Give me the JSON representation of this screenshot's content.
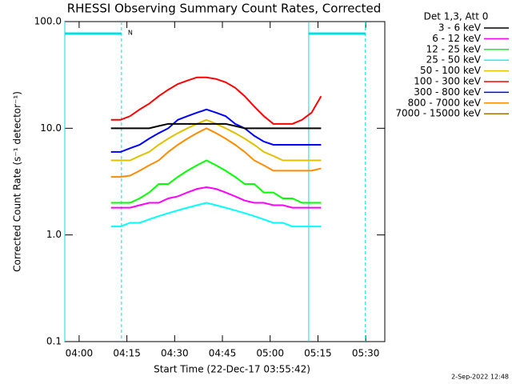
{
  "chart_data": {
    "type": "line",
    "title": "RHESSI Observing Summary Count Rates, Corrected",
    "x_label": "Start Time (22-Dec-17 03:55:42)",
    "y_label": "Corrected Count Rate (s⁻¹ detector⁻¹)",
    "legend_title": "Det 1,3, Att 0",
    "footer": "2-Sep-2022 12:48",
    "log_y": true,
    "legend_position": "outside-right",
    "xlim": [
      235.5,
      336
    ],
    "xticks": [
      {
        "value": 240,
        "label": "04:00"
      },
      {
        "value": 255,
        "label": "04:15"
      },
      {
        "value": 270,
        "label": "04:30"
      },
      {
        "value": 285,
        "label": "04:45"
      },
      {
        "value": 300,
        "label": "05:00"
      },
      {
        "value": 315,
        "label": "05:15"
      },
      {
        "value": 330,
        "label": "05:30"
      }
    ],
    "ylim": [
      0.1,
      100
    ],
    "yticks": [
      {
        "value": 0.1,
        "label": "0.1"
      },
      {
        "value": 1,
        "label": "1.0"
      },
      {
        "value": 10,
        "label": "10.0"
      },
      {
        "value": 100,
        "label": "100.0"
      }
    ],
    "night_periods": [
      [
        235.5,
        253.3
      ],
      [
        312.1,
        329.9
      ]
    ],
    "night_label": "N",
    "x": [
      250,
      253,
      256,
      259,
      262,
      265,
      268,
      271,
      274,
      277,
      280,
      283,
      286,
      289,
      292,
      295,
      298,
      301,
      304,
      307,
      310,
      313,
      316
    ],
    "series": [
      {
        "name": "3 - 6 keV",
        "color": "#000000",
        "values": [
          10,
          10,
          10,
          10,
          10,
          10.5,
          11,
          11,
          11,
          11,
          11,
          11,
          11,
          10.5,
          10,
          10,
          10,
          10,
          10,
          10,
          10,
          10,
          10
        ]
      },
      {
        "name": "6 - 12 keV",
        "color": "#ff00ff",
        "values": [
          1.8,
          1.8,
          1.8,
          1.9,
          2,
          2,
          2.2,
          2.3,
          2.5,
          2.7,
          2.8,
          2.7,
          2.5,
          2.3,
          2.1,
          2,
          2,
          1.9,
          1.9,
          1.8,
          1.8,
          1.8,
          1.8
        ]
      },
      {
        "name": "12 - 25 keV",
        "color": "#00ff00",
        "values": [
          2,
          2,
          2,
          2.2,
          2.5,
          3,
          3,
          3.5,
          4,
          4.5,
          5,
          4.5,
          4,
          3.5,
          3,
          3,
          2.5,
          2.5,
          2.2,
          2.2,
          2,
          2,
          2
        ]
      },
      {
        "name": "25 - 50 keV",
        "color": "#00ffff",
        "values": [
          1.2,
          1.2,
          1.3,
          1.3,
          1.4,
          1.5,
          1.6,
          1.7,
          1.8,
          1.9,
          2,
          1.9,
          1.8,
          1.7,
          1.6,
          1.5,
          1.4,
          1.3,
          1.3,
          1.2,
          1.2,
          1.2,
          1.2
        ]
      },
      {
        "name": "50 - 100 keV",
        "color": "#e0c000",
        "values": [
          5,
          5,
          5,
          5.5,
          6,
          7,
          8,
          9,
          10,
          11,
          12,
          11,
          10,
          9,
          8,
          7,
          6,
          5.5,
          5,
          5,
          5,
          5,
          5
        ]
      },
      {
        "name": "100 - 300 keV",
        "color": "#ff0000",
        "values": [
          12,
          12,
          13,
          15,
          17,
          20,
          23,
          26,
          28,
          30,
          30,
          29,
          27,
          24,
          20,
          16,
          13,
          11,
          11,
          11,
          12,
          14,
          20
        ]
      },
      {
        "name": "300 - 800 keV",
        "color": "#0000ff",
        "values": [
          6,
          6,
          6.5,
          7,
          8,
          9,
          10,
          12,
          13,
          14,
          15,
          14,
          13,
          11,
          10,
          8.5,
          7.5,
          7,
          7,
          7,
          7,
          7,
          7
        ]
      },
      {
        "name": "800 - 7000 keV",
        "color": "#ff8c00",
        "values": [
          3.5,
          3.5,
          3.6,
          4,
          4.5,
          5,
          6,
          7,
          8,
          9,
          10,
          9,
          8,
          7,
          6,
          5,
          4.5,
          4,
          4,
          4,
          4,
          4,
          4.2
        ]
      },
      {
        "name": "7000 - 15000 keV",
        "color": "#a07000",
        "values": [
          null,
          null,
          null,
          null,
          null,
          null,
          null,
          null,
          null,
          null,
          null,
          null,
          null,
          null,
          null,
          null,
          null,
          null,
          null,
          null,
          null,
          null,
          null
        ]
      }
    ]
  }
}
